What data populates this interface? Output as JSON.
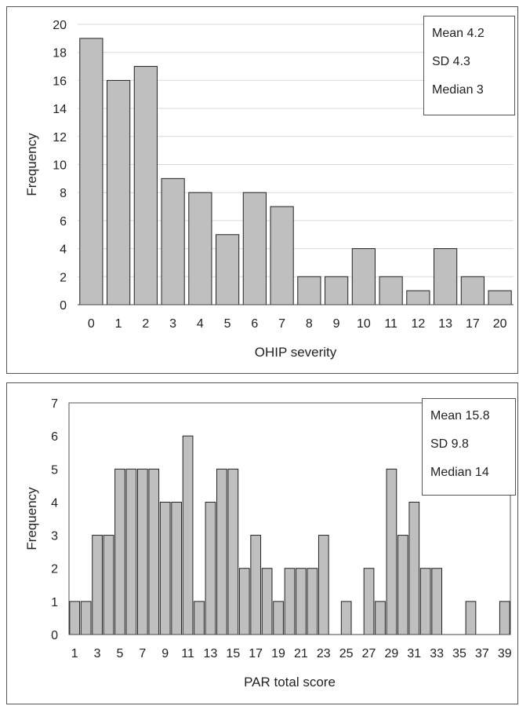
{
  "chart_data": [
    {
      "type": "bar",
      "categories": [
        "0",
        "1",
        "2",
        "3",
        "4",
        "5",
        "6",
        "7",
        "8",
        "9",
        "10",
        "11",
        "12",
        "13",
        "17",
        "20"
      ],
      "values": [
        19,
        16,
        17,
        9,
        8,
        5,
        8,
        7,
        2,
        2,
        4,
        2,
        1,
        4,
        2,
        1
      ],
      "xlabel": "OHIP severity",
      "ylabel": "Frequency",
      "ylim": [
        0,
        20
      ],
      "yticks": [
        "0",
        "2",
        "4",
        "6",
        "8",
        "10",
        "12",
        "14",
        "16",
        "18",
        "20"
      ],
      "grid": true,
      "bar_color": "#bfbfbf",
      "bar_edge_color": "#222222",
      "stats": [
        "Mean 4.2",
        "SD 4.3",
        "Median 3"
      ],
      "stats_placement": "top-right"
    },
    {
      "type": "bar",
      "categories": [
        "1",
        "2",
        "3",
        "4",
        "5",
        "6",
        "7",
        "8",
        "9",
        "10",
        "11",
        "12",
        "13",
        "14",
        "15",
        "16",
        "17",
        "18",
        "19",
        "20",
        "21",
        "22",
        "23",
        "24",
        "25",
        "26",
        "27",
        "28",
        "29",
        "30",
        "31",
        "32",
        "33",
        "34",
        "35",
        "36",
        "37",
        "38",
        "39"
      ],
      "xtick_labels": [
        "1",
        "3",
        "5",
        "7",
        "9",
        "11",
        "13",
        "15",
        "17",
        "19",
        "21",
        "23",
        "25",
        "27",
        "29",
        "31",
        "33",
        "35",
        "37",
        "39"
      ],
      "values": [
        1,
        1,
        3,
        3,
        5,
        5,
        5,
        5,
        4,
        4,
        6,
        1,
        4,
        5,
        5,
        2,
        3,
        2,
        1,
        2,
        2,
        2,
        3,
        0,
        1,
        0,
        2,
        1,
        5,
        3,
        4,
        2,
        2,
        0,
        0,
        1,
        0,
        0,
        1
      ],
      "xlabel": "PAR total score",
      "ylabel": "Frequency",
      "ylim": [
        0,
        7
      ],
      "yticks": [
        "0",
        "1",
        "2",
        "3",
        "4",
        "5",
        "6",
        "7"
      ],
      "grid": false,
      "bar_color": "#bfbfbf",
      "bar_edge_color": "#222222",
      "stats": [
        "Mean 15.8",
        "SD 9.8",
        "Median 14"
      ],
      "stats_placement": "top-right"
    }
  ]
}
